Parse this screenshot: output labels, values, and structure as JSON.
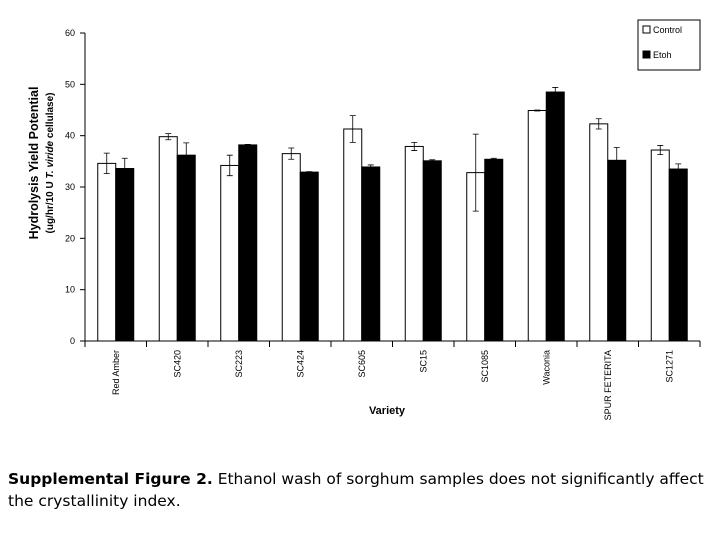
{
  "chart_data": {
    "type": "bar",
    "y_label": "Hydrolysis Yield Potential",
    "y_label_sub": [
      "(ug/hr/10 U",
      "T. viride",
      "cellulase)"
    ],
    "x_label": "Variety",
    "categories": [
      "Red Amber",
      "SC420",
      "SC223",
      "SC424",
      "SC605",
      "SC15",
      "SC1085",
      "Waconia",
      "SPUR FETERITA",
      "SC1271"
    ],
    "series": [
      {
        "name": "Control",
        "color": "#ffffff",
        "values": [
          34.6,
          39.8,
          34.2,
          36.5,
          41.3,
          37.9,
          32.8,
          44.9,
          42.3,
          37.2
        ],
        "errors": [
          2.0,
          0.6,
          2.0,
          1.1,
          2.6,
          0.8,
          7.5,
          0.1,
          1.0,
          0.9
        ]
      },
      {
        "name": "Etoh",
        "color": "#000000",
        "values": [
          33.6,
          36.2,
          38.2,
          32.9,
          33.9,
          35.1,
          35.4,
          48.5,
          35.2,
          33.5
        ],
        "errors": [
          2.0,
          2.4,
          0.1,
          0.1,
          0.4,
          0.2,
          0.2,
          0.9,
          2.5,
          1.0
        ]
      }
    ],
    "ylim": [
      0,
      60
    ],
    "yticks": [
      0,
      10,
      20,
      30,
      40,
      50,
      60
    ],
    "grid": false,
    "legend": "upper right"
  },
  "caption": {
    "label": "Supplemental Figure 2.",
    "text": "Ethanol wash of sorghum samples does not significantly affect the crystallinity index."
  }
}
